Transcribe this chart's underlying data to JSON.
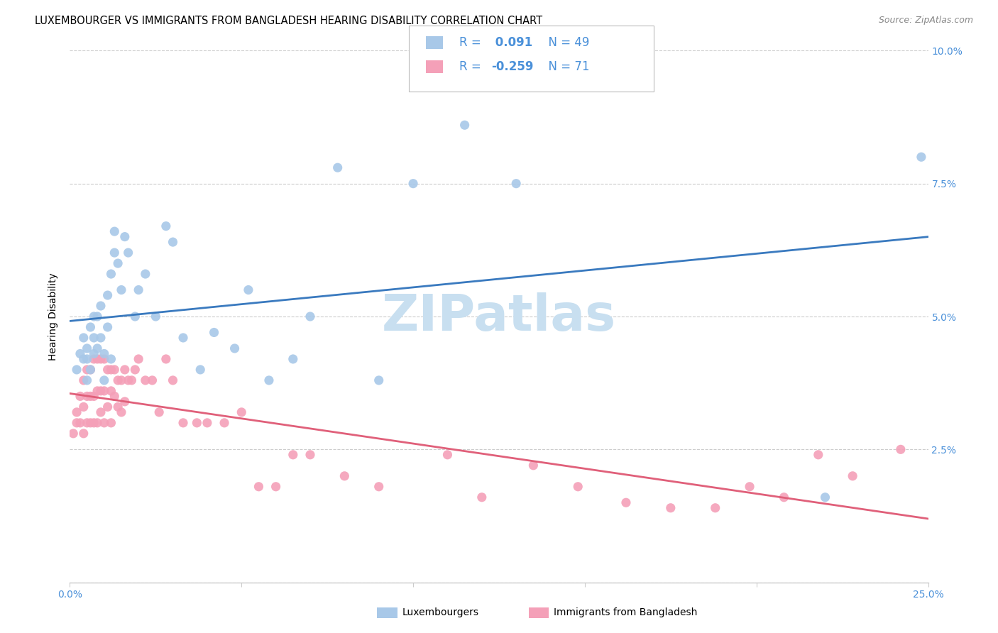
{
  "title": "LUXEMBOURGER VS IMMIGRANTS FROM BANGLADESH HEARING DISABILITY CORRELATION CHART",
  "source": "Source: ZipAtlas.com",
  "ylabel": "Hearing Disability",
  "xlim": [
    0.0,
    0.25
  ],
  "ylim": [
    0.0,
    0.1
  ],
  "xticks": [
    0.0,
    0.05,
    0.1,
    0.15,
    0.2,
    0.25
  ],
  "yticks": [
    0.0,
    0.025,
    0.05,
    0.075,
    0.1
  ],
  "xticklabels": [
    "0.0%",
    "",
    "",
    "",
    "",
    "25.0%"
  ],
  "yticklabels": [
    "",
    "2.5%",
    "5.0%",
    "7.5%",
    "10.0%"
  ],
  "blue_color": "#a8c8e8",
  "pink_color": "#f4a0b8",
  "blue_line_color": "#3a7abf",
  "pink_line_color": "#e0607a",
  "tick_label_color": "#4a90d9",
  "watermark_text": "ZIPatlas",
  "watermark_color": "#c8dff0",
  "blue_scatter_x": [
    0.002,
    0.003,
    0.004,
    0.004,
    0.005,
    0.005,
    0.005,
    0.006,
    0.006,
    0.007,
    0.007,
    0.007,
    0.008,
    0.008,
    0.009,
    0.009,
    0.01,
    0.01,
    0.011,
    0.011,
    0.012,
    0.012,
    0.013,
    0.013,
    0.014,
    0.015,
    0.016,
    0.017,
    0.019,
    0.02,
    0.022,
    0.025,
    0.028,
    0.03,
    0.033,
    0.038,
    0.042,
    0.048,
    0.052,
    0.058,
    0.065,
    0.07,
    0.078,
    0.09,
    0.1,
    0.115,
    0.13,
    0.22,
    0.248
  ],
  "blue_scatter_y": [
    0.04,
    0.043,
    0.042,
    0.046,
    0.038,
    0.042,
    0.044,
    0.04,
    0.048,
    0.043,
    0.046,
    0.05,
    0.044,
    0.05,
    0.046,
    0.052,
    0.038,
    0.043,
    0.048,
    0.054,
    0.042,
    0.058,
    0.062,
    0.066,
    0.06,
    0.055,
    0.065,
    0.062,
    0.05,
    0.055,
    0.058,
    0.05,
    0.067,
    0.064,
    0.046,
    0.04,
    0.047,
    0.044,
    0.055,
    0.038,
    0.042,
    0.05,
    0.078,
    0.038,
    0.075,
    0.086,
    0.075,
    0.016,
    0.08
  ],
  "pink_scatter_x": [
    0.001,
    0.002,
    0.002,
    0.003,
    0.003,
    0.004,
    0.004,
    0.004,
    0.005,
    0.005,
    0.005,
    0.006,
    0.006,
    0.006,
    0.007,
    0.007,
    0.007,
    0.008,
    0.008,
    0.008,
    0.009,
    0.009,
    0.009,
    0.01,
    0.01,
    0.01,
    0.011,
    0.011,
    0.012,
    0.012,
    0.012,
    0.013,
    0.013,
    0.014,
    0.014,
    0.015,
    0.015,
    0.016,
    0.016,
    0.017,
    0.018,
    0.019,
    0.02,
    0.022,
    0.024,
    0.026,
    0.028,
    0.03,
    0.033,
    0.037,
    0.04,
    0.045,
    0.05,
    0.055,
    0.06,
    0.065,
    0.07,
    0.08,
    0.09,
    0.11,
    0.12,
    0.135,
    0.148,
    0.162,
    0.175,
    0.188,
    0.198,
    0.208,
    0.218,
    0.228,
    0.242
  ],
  "pink_scatter_y": [
    0.028,
    0.03,
    0.032,
    0.03,
    0.035,
    0.028,
    0.033,
    0.038,
    0.03,
    0.035,
    0.04,
    0.03,
    0.035,
    0.04,
    0.03,
    0.035,
    0.042,
    0.03,
    0.036,
    0.042,
    0.032,
    0.036,
    0.042,
    0.03,
    0.036,
    0.042,
    0.033,
    0.04,
    0.03,
    0.036,
    0.04,
    0.035,
    0.04,
    0.033,
    0.038,
    0.032,
    0.038,
    0.034,
    0.04,
    0.038,
    0.038,
    0.04,
    0.042,
    0.038,
    0.038,
    0.032,
    0.042,
    0.038,
    0.03,
    0.03,
    0.03,
    0.03,
    0.032,
    0.018,
    0.018,
    0.024,
    0.024,
    0.02,
    0.018,
    0.024,
    0.016,
    0.022,
    0.018,
    0.015,
    0.014,
    0.014,
    0.018,
    0.016,
    0.024,
    0.02,
    0.025
  ],
  "title_fontsize": 10.5,
  "source_fontsize": 9,
  "axis_label_fontsize": 10,
  "tick_fontsize": 10,
  "legend_fontsize": 12,
  "watermark_fontsize": 52,
  "background_color": "#ffffff",
  "grid_color": "#cccccc",
  "legend_all_blue": true,
  "legend_R_color": "#4a90d9",
  "legend_text_color": "#000000"
}
